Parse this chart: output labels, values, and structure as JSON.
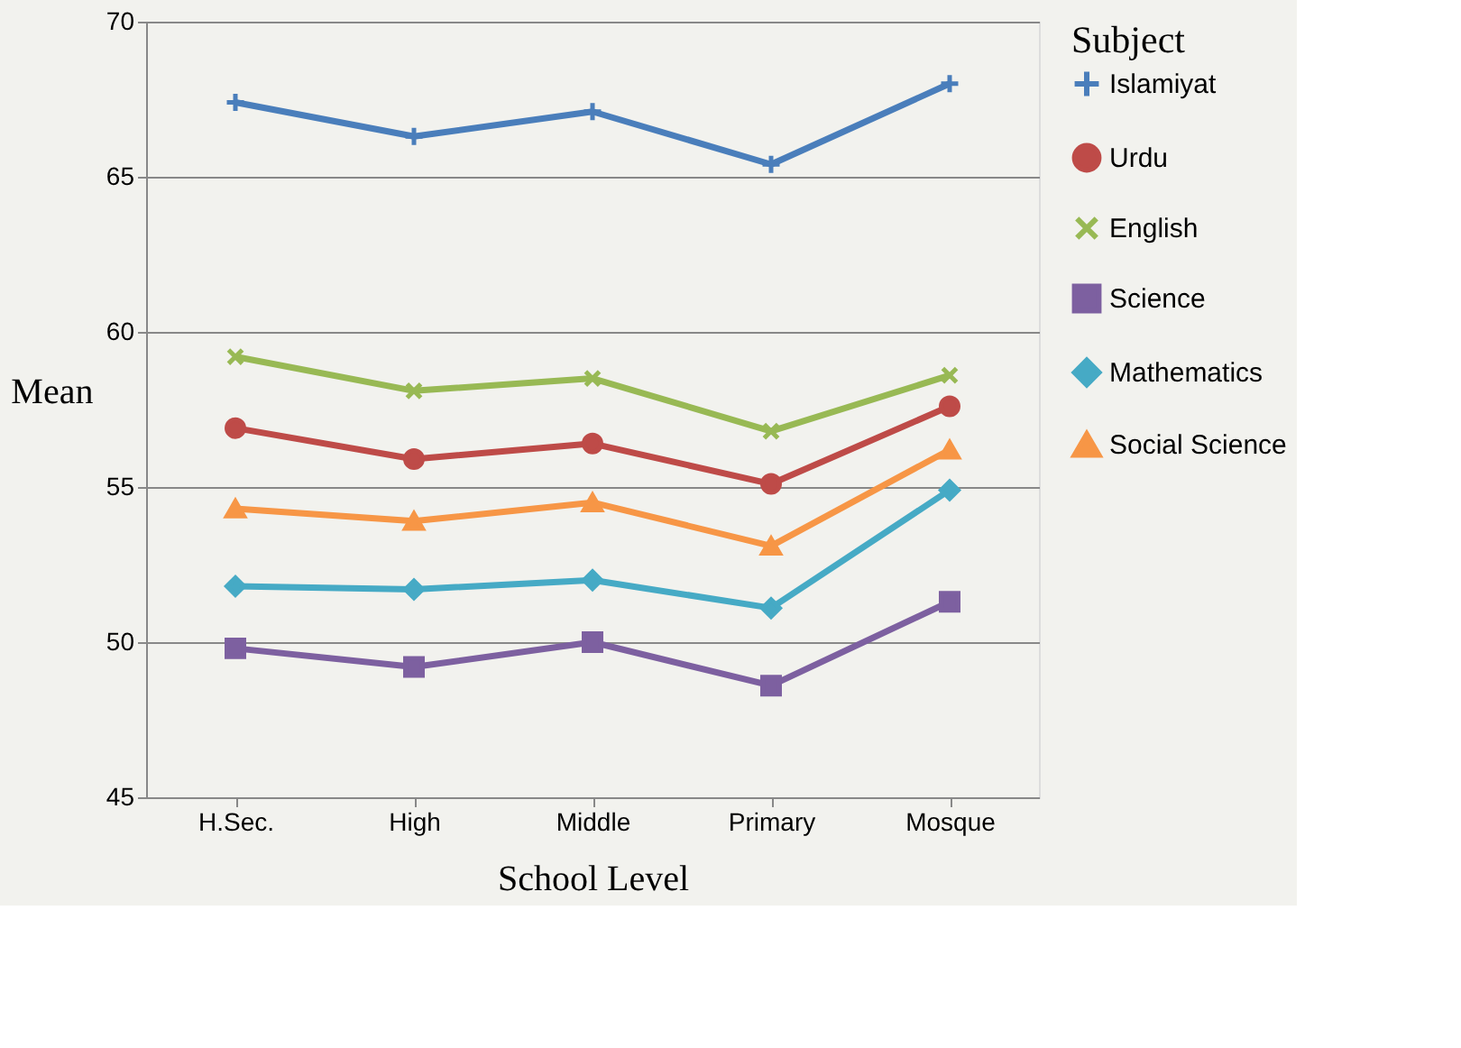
{
  "chart_data": {
    "type": "line",
    "xlabel": "School Level",
    "ylabel": "Mean",
    "legend_title": "Subject",
    "categories": [
      "H.Sec.",
      "High",
      "Middle",
      "Primary",
      "Mosque"
    ],
    "ylim": [
      45,
      70
    ],
    "yticks": [
      45,
      50,
      55,
      60,
      65,
      70
    ],
    "grid": "y",
    "legend": "right",
    "series": [
      {
        "name": "Islamiyat",
        "color": "#4a7ebb",
        "marker": "plus",
        "values": [
          67.4,
          66.3,
          67.1,
          65.4,
          68.0
        ]
      },
      {
        "name": "Urdu",
        "color": "#be4b48",
        "marker": "circle",
        "values": [
          56.9,
          55.9,
          56.4,
          55.1,
          57.6
        ]
      },
      {
        "name": "English",
        "color": "#98b954",
        "marker": "x",
        "values": [
          59.2,
          58.1,
          58.5,
          56.8,
          58.6
        ]
      },
      {
        "name": "Science",
        "color": "#7d60a0",
        "marker": "square",
        "values": [
          49.8,
          49.2,
          50.0,
          48.6,
          51.3
        ]
      },
      {
        "name": "Mathematics",
        "color": "#46aac5",
        "marker": "diamond",
        "values": [
          51.8,
          51.7,
          52.0,
          51.1,
          54.9
        ]
      },
      {
        "name": "Social Science",
        "color": "#f79646",
        "marker": "triangle",
        "values": [
          54.3,
          53.9,
          54.5,
          53.1,
          56.2
        ]
      }
    ]
  }
}
